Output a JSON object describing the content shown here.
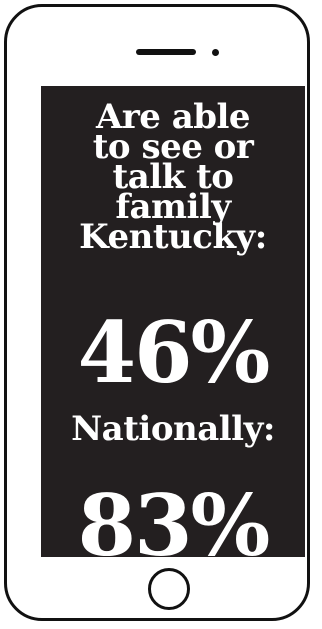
{
  "colors": {
    "screen_background": "#231f20",
    "text": "#ffffff",
    "phone_outline": "#111111"
  },
  "icons": [
    "speaker-icon",
    "camera-icon",
    "home-button-icon"
  ],
  "caption_lines": [
    "Are able",
    "to see or",
    "talk to",
    "family",
    "Kentucky:"
  ],
  "kentucky_value": "46%",
  "national_label": "Nationally:",
  "national_value": "83%"
}
